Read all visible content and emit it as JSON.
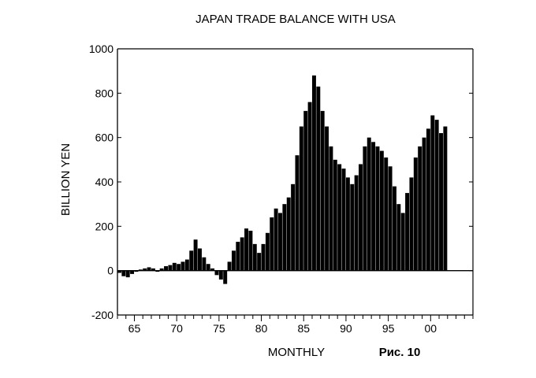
{
  "chart_data": {
    "type": "bar",
    "title": "JAPAN TRADE BALANCE WITH USA",
    "xlabel": "MONTHLY",
    "ylabel": "BILLION YEN",
    "figure_label": "Рис. 10",
    "ylim": [
      -200,
      1000
    ],
    "xlim": [
      1963,
      2005
    ],
    "y_ticks": [
      -200,
      0,
      200,
      400,
      600,
      800,
      1000
    ],
    "y_tick_labels": [
      "-200",
      "0",
      "200",
      "400",
      "600",
      "800",
      "1000"
    ],
    "x_ticks": [
      1965,
      1970,
      1975,
      1980,
      1985,
      1990,
      1995,
      2000
    ],
    "x_tick_labels": [
      "65",
      "70",
      "75",
      "80",
      "85",
      "90",
      "95",
      "00"
    ],
    "grid": false,
    "legend": "none",
    "bar_color": "#000000",
    "series": [
      {
        "values": [
          [
            1963.0,
            -10
          ],
          [
            1963.5,
            -25
          ],
          [
            1964.0,
            -30
          ],
          [
            1964.5,
            -15
          ],
          [
            1965.0,
            -5
          ],
          [
            1965.5,
            5
          ],
          [
            1966.0,
            10
          ],
          [
            1966.5,
            15
          ],
          [
            1967.0,
            10
          ],
          [
            1967.5,
            -5
          ],
          [
            1968.0,
            10
          ],
          [
            1968.5,
            20
          ],
          [
            1969.0,
            25
          ],
          [
            1969.5,
            35
          ],
          [
            1970.0,
            30
          ],
          [
            1970.5,
            40
          ],
          [
            1971.0,
            50
          ],
          [
            1971.5,
            90
          ],
          [
            1972.0,
            140
          ],
          [
            1972.5,
            100
          ],
          [
            1973.0,
            60
          ],
          [
            1973.5,
            30
          ],
          [
            1974.0,
            10
          ],
          [
            1974.5,
            -20
          ],
          [
            1975.0,
            -40
          ],
          [
            1975.5,
            -60
          ],
          [
            1976.0,
            40
          ],
          [
            1976.5,
            90
          ],
          [
            1977.0,
            130
          ],
          [
            1977.5,
            150
          ],
          [
            1978.0,
            190
          ],
          [
            1978.5,
            180
          ],
          [
            1979.0,
            120
          ],
          [
            1979.5,
            80
          ],
          [
            1980.0,
            120
          ],
          [
            1980.5,
            170
          ],
          [
            1981.0,
            240
          ],
          [
            1981.5,
            280
          ],
          [
            1982.0,
            260
          ],
          [
            1982.5,
            300
          ],
          [
            1983.0,
            330
          ],
          [
            1983.5,
            390
          ],
          [
            1984.0,
            520
          ],
          [
            1984.5,
            650
          ],
          [
            1985.0,
            720
          ],
          [
            1985.5,
            760
          ],
          [
            1986.0,
            880
          ],
          [
            1986.5,
            830
          ],
          [
            1987.0,
            720
          ],
          [
            1987.5,
            650
          ],
          [
            1988.0,
            560
          ],
          [
            1988.5,
            500
          ],
          [
            1989.0,
            480
          ],
          [
            1989.5,
            460
          ],
          [
            1990.0,
            420
          ],
          [
            1990.5,
            390
          ],
          [
            1991.0,
            430
          ],
          [
            1991.5,
            480
          ],
          [
            1992.0,
            560
          ],
          [
            1992.5,
            600
          ],
          [
            1993.0,
            580
          ],
          [
            1993.5,
            560
          ],
          [
            1994.0,
            540
          ],
          [
            1994.5,
            510
          ],
          [
            1995.0,
            470
          ],
          [
            1995.5,
            380
          ],
          [
            1996.0,
            300
          ],
          [
            1996.5,
            260
          ],
          [
            1997.0,
            350
          ],
          [
            1997.5,
            420
          ],
          [
            1998.0,
            510
          ],
          [
            1998.5,
            560
          ],
          [
            1999.0,
            600
          ],
          [
            1999.5,
            640
          ],
          [
            2000.0,
            700
          ],
          [
            2000.5,
            680
          ],
          [
            2001.0,
            620
          ],
          [
            2001.5,
            650
          ]
        ]
      }
    ]
  }
}
